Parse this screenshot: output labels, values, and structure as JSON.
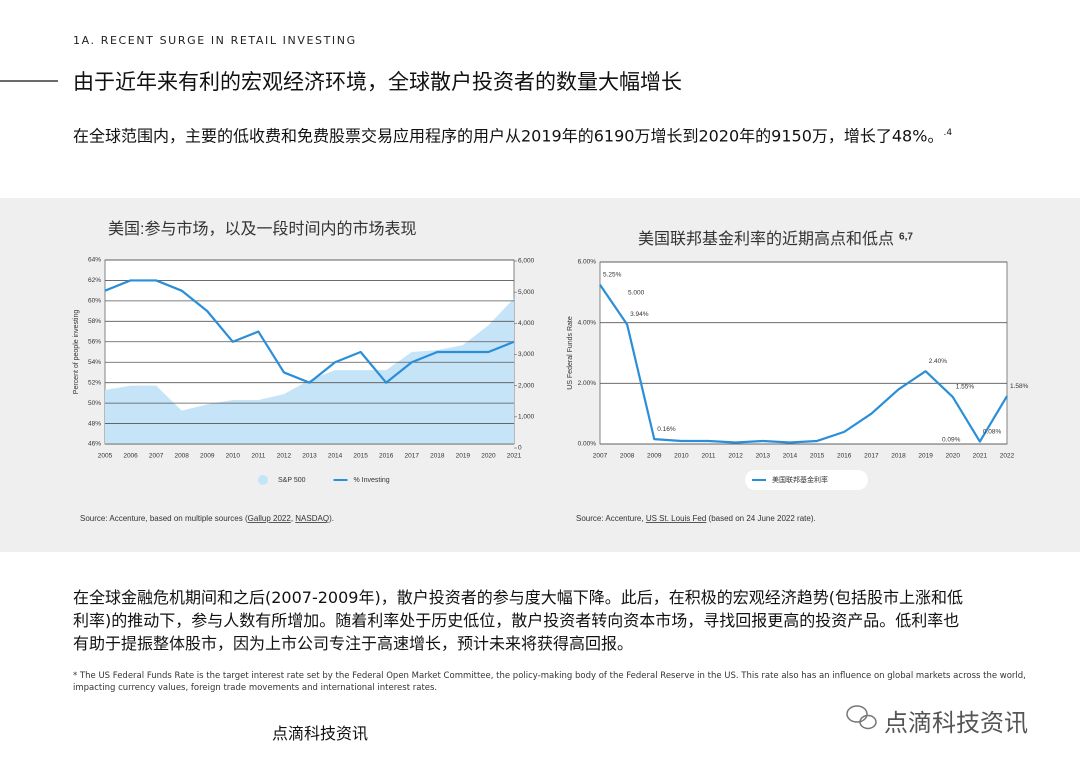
{
  "header": {
    "section": "1A. RECENT SURGE IN RETAIL INVESTING",
    "title": "由于近年来有利的宏观经济环境，全球散户投资者的数量大幅增长",
    "intro": "在全球范围内，主要的低收费和免费股票交易应用程序的用户从2019年的6190万增长到2020年的9150万，增长了48%。",
    "intro_note": ".4"
  },
  "chart_data": [
    {
      "type": "line",
      "title": "美国:参与市场，以及一段时间内的市场表现",
      "y_label": "Percent of people investing",
      "categories": [
        "2005",
        "2006",
        "2007",
        "2008",
        "2009",
        "2010",
        "2011",
        "2012",
        "2013",
        "2014",
        "2015",
        "2016",
        "2017",
        "2018",
        "2019",
        "2020",
        "2021"
      ],
      "ylim": [
        46,
        64
      ],
      "yticks": [
        {
          "value": 46,
          "label": "46%"
        },
        {
          "value": 48,
          "label": "48%"
        },
        {
          "value": 50,
          "label": "50%"
        },
        {
          "value": 52,
          "label": "52%"
        },
        {
          "value": 54,
          "label": "54%"
        },
        {
          "value": 56,
          "label": "56%"
        },
        {
          "value": 58,
          "label": "58%"
        },
        {
          "value": 60,
          "label": "60%"
        },
        {
          "value": 62,
          "label": "62%"
        },
        {
          "value": 64,
          "label": "64%"
        }
      ],
      "y2lim": [
        0,
        6000
      ],
      "y2ticks": [
        0,
        {
          "value": 1000,
          "label": "1,000"
        },
        {
          "value": 2000,
          "label": "2,000"
        },
        {
          "value": 3000,
          "label": "3,000"
        },
        {
          "value": 4000,
          "label": "4,000"
        },
        {
          "value": 5000,
          "label": "5,000"
        },
        {
          "value": 6000,
          "label": "6,000"
        }
      ],
      "series": [
        {
          "name": "S&P 500",
          "type": "area",
          "axis": "y2",
          "color": "#c6e4f8",
          "values": [
            1860,
            2000,
            2000,
            1200,
            1400,
            1540,
            1540,
            1730,
            2180,
            2500,
            2500,
            2500,
            3080,
            3140,
            3300,
            3940,
            4800
          ]
        },
        {
          "name": "% Investing",
          "type": "line",
          "color": "#2a8fd8",
          "values": [
            61,
            62,
            62,
            61,
            59,
            56,
            57,
            53,
            52,
            54,
            55,
            52,
            54,
            55,
            55,
            55,
            56
          ]
        }
      ],
      "grid": true,
      "legend": "bottom",
      "source": [
        {
          "text": "Source: Accenture, based on multiple sources ("
        },
        {
          "text": "Gallup 2022",
          "link": true
        },
        {
          "text": ", "
        },
        {
          "text": "NASDAQ",
          "link": true
        },
        {
          "text": ")."
        }
      ]
    },
    {
      "type": "line",
      "title": "美国联邦基金利率的近期高点和低点",
      "title_note": "6,7",
      "y_label": "US Federal Funds Rate",
      "categories": [
        "2007",
        "2008",
        "2009",
        "2010",
        "2011",
        "2012",
        "2013",
        "2014",
        "2015",
        "2016",
        "2017",
        "2018",
        "2019",
        "2020",
        "2021",
        "2022"
      ],
      "ylim": [
        0,
        6
      ],
      "yticks": [
        {
          "value": 0,
          "label": "0.00%"
        },
        {
          "value": 2,
          "label": "2.00%"
        },
        {
          "value": 4,
          "label": "4.00%"
        },
        {
          "value": 6,
          "label": "6.00%"
        }
      ],
      "series": [
        {
          "name": "美国联邦基金利率",
          "type": "line",
          "color": "#2a8fd8",
          "values": [
            5.25,
            3.94,
            0.16,
            0.1,
            0.1,
            0.05,
            0.1,
            0.05,
            0.1,
            0.4,
            1.0,
            1.8,
            2.4,
            1.55,
            0.08,
            1.58
          ],
          "value_labels": [
            "5.25%",
            "3.94%",
            "0.16%",
            null,
            null,
            null,
            null,
            null,
            null,
            null,
            null,
            null,
            "2.40%",
            "1.55%",
            "0.08%",
            "1.58%"
          ]
        }
      ],
      "annotations": [
        "5.000",
        "0.09%"
      ],
      "grid": true,
      "legend": "bottom",
      "source": [
        {
          "text": "Source: Accenture, "
        },
        {
          "text": "US St. Louis Fed",
          "link": true
        },
        {
          "text": " (based on 24 June 2022 rate)."
        }
      ]
    }
  ],
  "body": "在全球金融危机期间和之后(2007-2009年)，散户投资者的参与度大幅下降。此后，在积极的宏观经济趋势(包括股市上涨和低利率)的推动下，参与人数有所增加。随着利率处于历史低位，散户投资者转向资本市场，寻找回报更高的投资产品。低利率也有助于提振整体股市，因为上市公司专注于高速增长，预计未来将获得高回报。",
  "footnote": "* The US Federal Funds Rate is the target interest rate set by the Federal Open Market Committee, the policy-making body of the Federal Reserve in the US. This rate also has an influence on global markets across the world, impacting currency values, foreign trade movements and international interest rates.",
  "watermark": "点滴科技资讯",
  "brand": "点滴科技资讯"
}
